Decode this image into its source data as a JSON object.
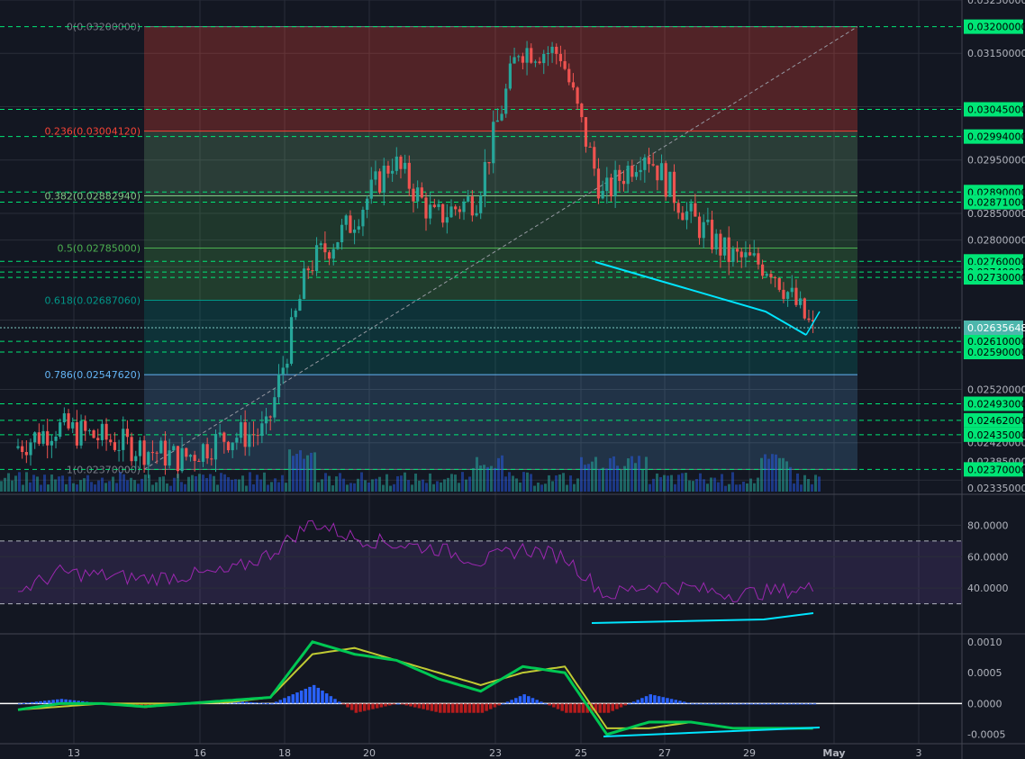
{
  "chart_data": [
    {
      "type": "line",
      "panel": "price",
      "scale": "linear",
      "grid": true,
      "colors": {
        "up": "#26a69a",
        "down": "#ef5350",
        "horizontal_level": "#00e676",
        "trendline": "#00e5ff",
        "fib_0": "#787b86",
        "fib_0_236": "#f44336",
        "fib_0_382": "#81c784",
        "fib_0_5": "#4caf50",
        "fib_0_618": "#009688",
        "fib_0_786": "#64b5f6",
        "fib_1": "#787b86"
      },
      "x_tick_labels": [
        "13",
        "16",
        "18",
        "20",
        "23",
        "25",
        "27",
        "29",
        "May",
        "3"
      ],
      "y_tick_labels": [
        "0.03250000",
        "0.03150000",
        "0.02950000",
        "0.02850000",
        "0.02800000",
        "0.02520000",
        "0.02420000",
        "0.02385000",
        "0.02335000"
      ],
      "price_label_current": "0.02635648",
      "horizontal_levels": [
        0.032,
        0.03045,
        0.02994,
        0.0289,
        0.02871,
        0.0276,
        0.0274,
        0.0273,
        0.0261,
        0.0259,
        0.02493,
        0.02462,
        0.02435,
        0.0237
      ],
      "horizontal_level_labels": [
        "0.03200000",
        "0.03045000",
        "0.02994000",
        "0.02890000",
        "0.02871000",
        "0.02760000",
        "0.02740000",
        "0.02730000",
        "0.02610000",
        "0.02590000",
        "0.02493000",
        "0.02462000",
        "0.02435000",
        "0.02370000"
      ],
      "fib_retracement": {
        "levels": [
          {
            "label": "0(0.03200000)",
            "price": 0.032
          },
          {
            "label": "0.236(0.03004120)",
            "price": 0.0300412
          },
          {
            "label": "0.382(0.02882940)",
            "price": 0.0288294
          },
          {
            "label": "0.5(0.02785000)",
            "price": 0.02785
          },
          {
            "label": "0.618(0.02687060)",
            "price": 0.0268706
          },
          {
            "label": "0.786(0.02547620)",
            "price": 0.0254762
          },
          {
            "label": "1(0.02370000)",
            "price": 0.0237
          }
        ]
      },
      "close_path": [
        {
          "x": "Apr 11",
          "y": 0.0241
        },
        {
          "x": "Apr 12",
          "y": 0.0245
        },
        {
          "x": "Apr 13",
          "y": 0.0243
        },
        {
          "x": "Apr 14",
          "y": 0.0241
        },
        {
          "x": "Apr 15",
          "y": 0.0239
        },
        {
          "x": "Apr 16",
          "y": 0.0243
        },
        {
          "x": "Apr 17",
          "y": 0.0244
        },
        {
          "x": "Apr 18",
          "y": 0.0275
        },
        {
          "x": "Apr 19",
          "y": 0.0283
        },
        {
          "x": "Apr 20",
          "y": 0.0295
        },
        {
          "x": "Apr 21",
          "y": 0.0284
        },
        {
          "x": "Apr 22",
          "y": 0.0288
        },
        {
          "x": "Apr 23",
          "y": 0.0316
        },
        {
          "x": "Apr 24",
          "y": 0.0315
        },
        {
          "x": "Apr 25",
          "y": 0.0288
        },
        {
          "x": "Apr 26",
          "y": 0.0297
        },
        {
          "x": "Apr 27",
          "y": 0.0285
        },
        {
          "x": "Apr 28",
          "y": 0.0277
        },
        {
          "x": "Apr 29",
          "y": 0.0275
        },
        {
          "x": "Apr 30",
          "y": 0.0263
        }
      ]
    },
    {
      "type": "line",
      "panel": "rsi",
      "y_tick_labels": [
        "80.0000",
        "60.0000",
        "40.0000"
      ],
      "bands": [
        70,
        30
      ],
      "series_color": "#9c27b0",
      "values": [
        38,
        50,
        48,
        46,
        48,
        50,
        62,
        82,
        72,
        68,
        65,
        57,
        65,
        60,
        35,
        42,
        40,
        36,
        38,
        40
      ]
    },
    {
      "type": "line",
      "panel": "macd",
      "y_tick_labels": [
        "0.0010",
        "0.0005",
        "0.0000",
        "-0.0005"
      ],
      "colors": {
        "macd": "#00c853",
        "signal": "#c0ca33",
        "histogram_up": "#2962ff",
        "histogram_down": "#b71c1c"
      },
      "macd": [
        -0.0001,
        0.0,
        0.0,
        -5e-05,
        0.0,
        5e-05,
        0.0001,
        0.001,
        0.0008,
        0.0007,
        0.0004,
        0.0002,
        0.0006,
        0.0005,
        -0.0005,
        -0.0003,
        -0.0003,
        -0.0004,
        -0.0004,
        -0.0004
      ],
      "signal": [
        -0.0001,
        -5e-05,
        0.0,
        0.0,
        0.0,
        2e-05,
        0.0001,
        0.0008,
        0.0009,
        0.0007,
        0.0005,
        0.0003,
        0.0005,
        0.0006,
        -0.0004,
        -0.0004,
        -0.0003,
        -0.0004,
        -0.0004,
        -0.0004
      ]
    }
  ]
}
